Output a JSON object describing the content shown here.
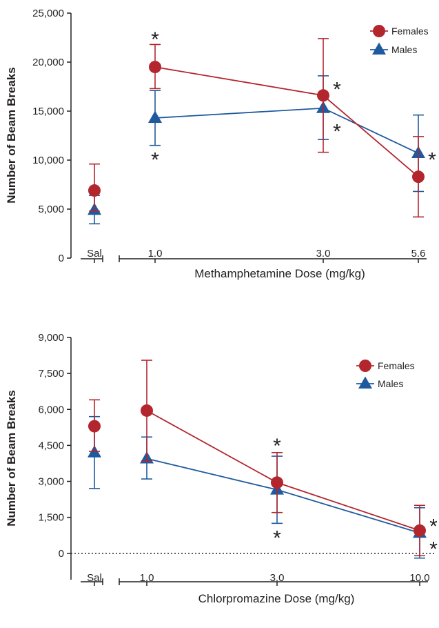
{
  "colors": {
    "females": "#b3262e",
    "males": "#1f5a9e",
    "axis": "#231f20"
  },
  "chart_data": [
    {
      "type": "line",
      "ylabel": "Number of Beam Breaks",
      "xlabel": "Methamphetamine Dose (mg/kg)",
      "ylim": [
        0,
        25000
      ],
      "yticks": [
        "0",
        "5,000",
        "10,000",
        "15,000",
        "20,000",
        "25,000"
      ],
      "ytick_values": [
        0,
        5000,
        10000,
        15000,
        20000,
        25000
      ],
      "categories": [
        "Sal",
        "1.0",
        "3.0",
        "5.6"
      ],
      "legend_position": "top-right",
      "series": [
        {
          "name": "Females",
          "marker": "circle",
          "values": [
            6900,
            19500,
            16600,
            8300
          ],
          "err_upper": [
            9600,
            21800,
            22400,
            12400
          ],
          "err_lower": [
            4800,
            17300,
            10800,
            4200
          ]
        },
        {
          "name": "Males",
          "marker": "triangle",
          "values": [
            4900,
            14300,
            15300,
            10700
          ],
          "err_upper": [
            6400,
            17100,
            18600,
            14600
          ],
          "err_lower": [
            3500,
            11500,
            12100,
            6800
          ]
        }
      ],
      "annotations": [
        {
          "text": "*",
          "category": "1.0",
          "value": 22600
        },
        {
          "text": "*",
          "category": "1.0",
          "value": 10300
        },
        {
          "text": "*",
          "category": "3.0",
          "value": 17500,
          "side": "right"
        },
        {
          "text": "*",
          "category": "3.0",
          "value": 13200,
          "side": "right"
        },
        {
          "text": "*",
          "category": "5.6",
          "value": 10300,
          "side": "right"
        }
      ]
    },
    {
      "type": "line",
      "ylabel": "Number of Beam Breaks",
      "xlabel": "Chlorpromazine Dose (mg/kg)",
      "ylim": [
        -1100,
        9000
      ],
      "yticks": [
        "0",
        "1,500",
        "3,000",
        "4,500",
        "6,000",
        "7,500",
        "9,000"
      ],
      "ytick_values": [
        0,
        1500,
        3000,
        4500,
        6000,
        7500,
        9000
      ],
      "categories": [
        "Sal",
        "1.0",
        "3.0",
        "10.0"
      ],
      "legend_position": "top-right",
      "reference_line": 0,
      "series": [
        {
          "name": "Females",
          "marker": "circle",
          "values": [
            5300,
            5950,
            2950,
            950
          ],
          "err_upper": [
            6400,
            8050,
            4200,
            2000
          ],
          "err_lower": [
            4250,
            3850,
            1700,
            -100
          ]
        },
        {
          "name": "Males",
          "marker": "triangle",
          "values": [
            4200,
            3950,
            2650,
            850
          ],
          "err_upper": [
            5700,
            4850,
            4050,
            1900
          ],
          "err_lower": [
            2700,
            3100,
            1250,
            -200
          ]
        }
      ],
      "annotations": [
        {
          "text": "*",
          "category": "3.0",
          "value": 4600
        },
        {
          "text": "*",
          "category": "3.0",
          "value": 750
        },
        {
          "text": "*",
          "category": "10.0",
          "value": 1250,
          "side": "right"
        },
        {
          "text": "*",
          "category": "10.0",
          "value": 300,
          "side": "right"
        }
      ]
    }
  ]
}
